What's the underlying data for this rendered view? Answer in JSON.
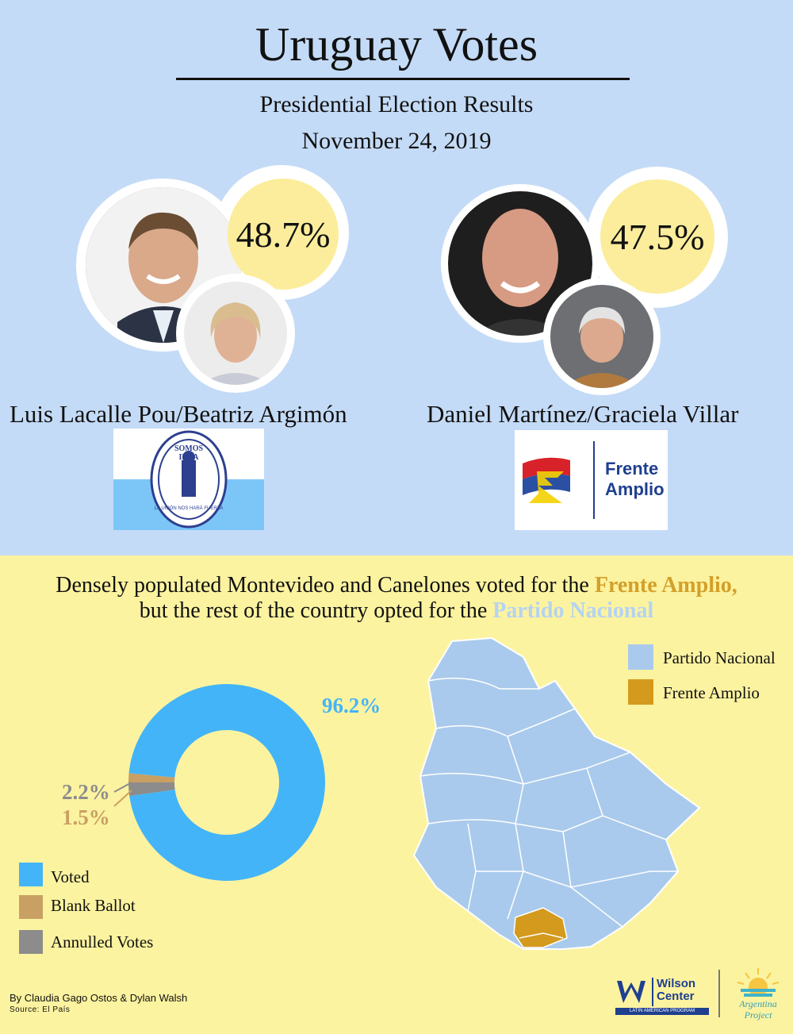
{
  "title": "Uruguay Votes",
  "subtitle": "Presidential Election Results",
  "date": "November 24, 2019",
  "candidates": [
    {
      "names": "Luis Lacalle Pou/Beatriz Argimón",
      "percent": "48.7%",
      "party_logo_text": "SOMOS IDEA",
      "party_logo_motto": "LA UNIÓN NOS HARÁ FUERZA"
    },
    {
      "names": "Daniel Martínez/Graciela Villar",
      "percent": "47.5%",
      "party_logo_text_1": "Frente",
      "party_logo_text_2": "Amplio"
    }
  ],
  "headline": {
    "part1": "Densely populated Montevideo and Canelones voted for the",
    "fa": "Frente Amplio,",
    "part2": "but the rest of the country opted for the",
    "pn": "Partido Nacional"
  },
  "map_legend": [
    {
      "label": "Partido Nacional",
      "color": "#a9caec"
    },
    {
      "label": "Frente Amplio",
      "color": "#d49a1e"
    }
  ],
  "chart_data": {
    "type": "pie",
    "categories": [
      "Voted",
      "Blank Ballot",
      "Annulled Votes"
    ],
    "values": [
      96.2,
      1.5,
      2.2
    ],
    "labels": [
      "96.2%",
      "1.5%",
      "2.2%"
    ],
    "colors": [
      "#43b4f8",
      "#c9a063",
      "#8c8c8c"
    ]
  },
  "credit": "By Claudia Gago Ostos & Dylan Walsh",
  "source": "Source: El País",
  "logos": {
    "wilson_1": "Wilson",
    "wilson_2": "Center",
    "wilson_program": "LATIN AMERICAN PROGRAM",
    "argentina_1": "Argentina",
    "argentina_2": "Project"
  }
}
